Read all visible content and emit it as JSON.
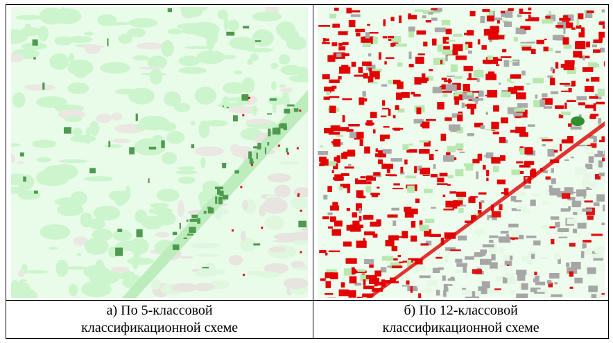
{
  "figure": {
    "panels": [
      {
        "caption_lines": [
          "а) По 5-классовой",
          "классификационной схеме"
        ]
      },
      {
        "caption_lines": [
          "б) По 12-классовой",
          "классификационной схеме"
        ]
      }
    ]
  }
}
